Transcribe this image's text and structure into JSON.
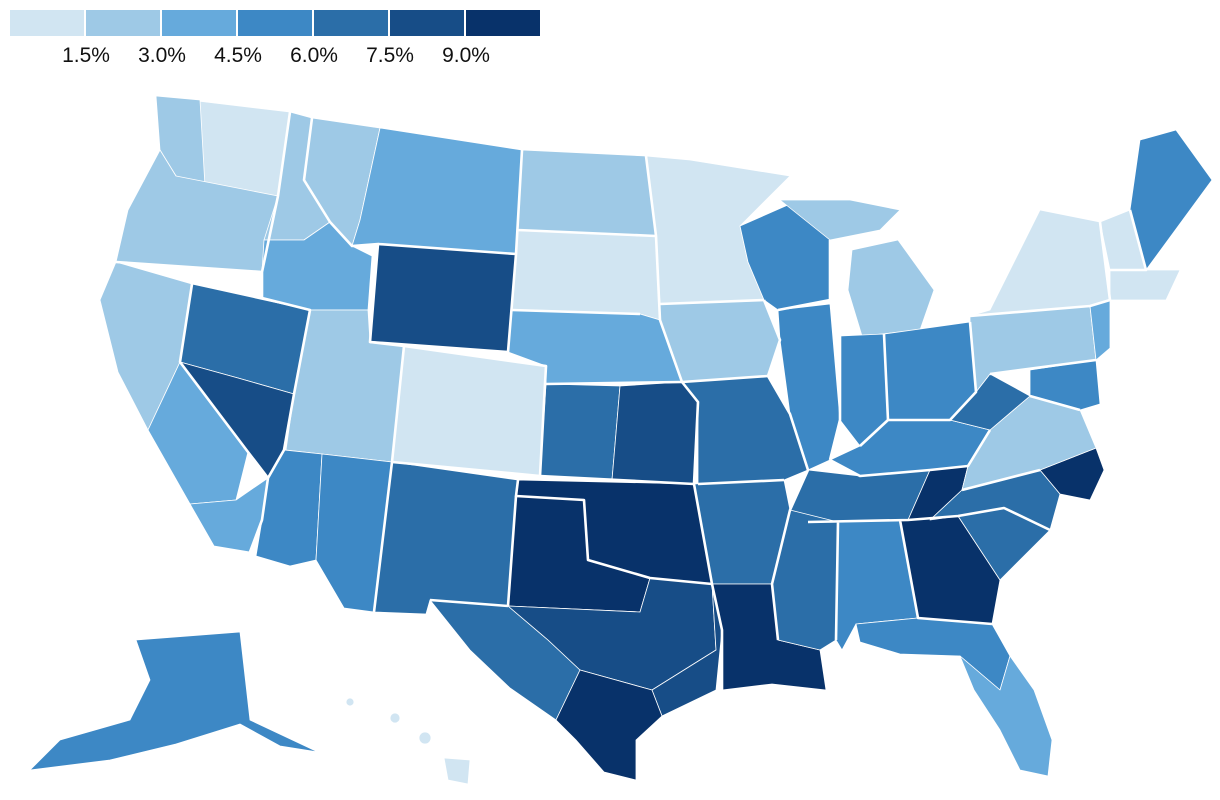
{
  "legend": {
    "colors": [
      "#d1e5f2",
      "#9ec9e6",
      "#66aadc",
      "#3d88c5",
      "#2b6ea8",
      "#174d87",
      "#08326a"
    ],
    "labels": [
      "1.5%",
      "3.0%",
      "4.5%",
      "6.0%",
      "7.5%",
      "9.0%"
    ]
  },
  "regions": [
    {
      "name": "washington",
      "level": 1
    },
    {
      "name": "washington-west",
      "level": 2
    },
    {
      "name": "oregon",
      "level": 2
    },
    {
      "name": "california-north",
      "level": 2
    },
    {
      "name": "california-central",
      "level": 3
    },
    {
      "name": "california-south",
      "level": 3
    },
    {
      "name": "nevada-north",
      "level": 5
    },
    {
      "name": "nevada-south",
      "level": 6
    },
    {
      "name": "idaho-north",
      "level": 2
    },
    {
      "name": "idaho-south",
      "level": 3
    },
    {
      "name": "montana-west",
      "level": 2
    },
    {
      "name": "montana",
      "level": 3
    },
    {
      "name": "wyoming",
      "level": 6
    },
    {
      "name": "utah",
      "level": 2
    },
    {
      "name": "colorado",
      "level": 1
    },
    {
      "name": "arizona-west",
      "level": 4
    },
    {
      "name": "arizona",
      "level": 4
    },
    {
      "name": "new-mexico",
      "level": 5
    },
    {
      "name": "north-dakota",
      "level": 2
    },
    {
      "name": "south-dakota",
      "level": 1
    },
    {
      "name": "nebraska",
      "level": 3
    },
    {
      "name": "kansas-west",
      "level": 5
    },
    {
      "name": "kansas-east",
      "level": 6
    },
    {
      "name": "oklahoma",
      "level": 7
    },
    {
      "name": "texas-panhandle",
      "level": 7
    },
    {
      "name": "texas-west",
      "level": 5
    },
    {
      "name": "texas-central",
      "level": 6
    },
    {
      "name": "texas-east",
      "level": 6
    },
    {
      "name": "texas-south",
      "level": 7
    },
    {
      "name": "minnesota",
      "level": 1
    },
    {
      "name": "iowa",
      "level": 2
    },
    {
      "name": "missouri",
      "level": 5
    },
    {
      "name": "arkansas",
      "level": 5
    },
    {
      "name": "louisiana",
      "level": 7
    },
    {
      "name": "wisconsin",
      "level": 4
    },
    {
      "name": "illinois",
      "level": 4
    },
    {
      "name": "michigan",
      "level": 2
    },
    {
      "name": "michigan-upper",
      "level": 2
    },
    {
      "name": "indiana",
      "level": 4
    },
    {
      "name": "ohio",
      "level": 4
    },
    {
      "name": "kentucky",
      "level": 4
    },
    {
      "name": "tennessee",
      "level": 5
    },
    {
      "name": "tennessee-east",
      "level": 7
    },
    {
      "name": "mississippi",
      "level": 5
    },
    {
      "name": "alabama",
      "level": 4
    },
    {
      "name": "georgia",
      "level": 7
    },
    {
      "name": "florida-north",
      "level": 4
    },
    {
      "name": "florida-south",
      "level": 3
    },
    {
      "name": "south-carolina",
      "level": 5
    },
    {
      "name": "north-carolina",
      "level": 5
    },
    {
      "name": "north-carolina-east",
      "level": 7
    },
    {
      "name": "virginia",
      "level": 2
    },
    {
      "name": "west-virginia",
      "level": 5
    },
    {
      "name": "pennsylvania",
      "level": 2
    },
    {
      "name": "new-york",
      "level": 1
    },
    {
      "name": "new-jersey",
      "level": 3
    },
    {
      "name": "maryland-delaware",
      "level": 4
    },
    {
      "name": "new-england-south",
      "level": 1
    },
    {
      "name": "vermont-new-hampshire",
      "level": 1
    },
    {
      "name": "maine",
      "level": 4
    },
    {
      "name": "alaska",
      "level": 4
    },
    {
      "name": "hawaii",
      "level": 1
    }
  ]
}
